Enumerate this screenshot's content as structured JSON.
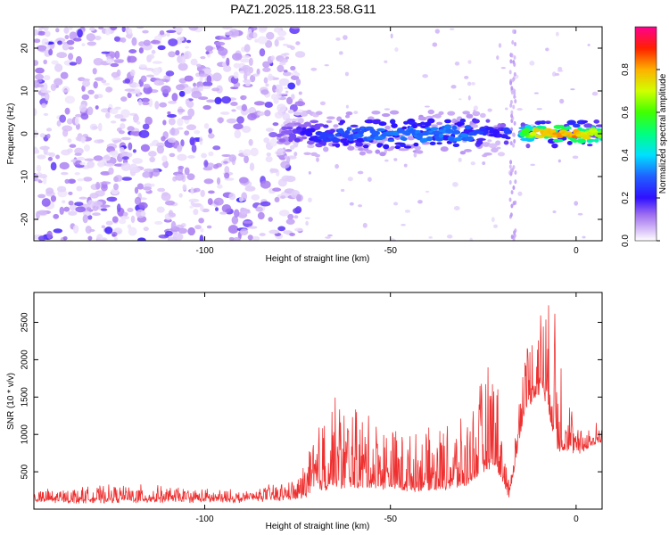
{
  "figure": {
    "title": "PAZ1.2025.118.23.58.G11"
  },
  "colors": {
    "snr_line": "#ee3030",
    "frame": "#000000"
  },
  "chart_data": [
    {
      "type": "heatmap",
      "xlabel": "Height of straight line (km)",
      "ylabel": "Frequency (Hz)",
      "xlim": [
        -146,
        7
      ],
      "ylim": [
        -25,
        25
      ],
      "xticks": [
        -100,
        -50,
        0
      ],
      "yticks": [
        -20,
        -10,
        0,
        10,
        20
      ],
      "colorbar": {
        "label": "Normalized spectral amplitude",
        "range": [
          0,
          1
        ],
        "ticks": [
          0.0,
          0.2,
          0.4,
          0.6,
          0.8
        ],
        "colormap": "rainbow",
        "low_color": "#ffffff",
        "high_color": "#ff0090"
      },
      "description_values": {
        "noise_region_x": [
          -146,
          -80
        ],
        "noise_amplitude_max": 0.1,
        "signal_band_center_hz": 0,
        "signal_band_halfwidth_hz": 4,
        "signal_amplitude_by_height": [
          {
            "x": -78,
            "amp": 0.15
          },
          {
            "x": -66,
            "amp": 0.3
          },
          {
            "x": -50,
            "amp": 0.35
          },
          {
            "x": -30,
            "amp": 0.35
          },
          {
            "x": -20,
            "amp": 0.2
          },
          {
            "x": -10,
            "amp": 0.85
          },
          {
            "x": 0,
            "amp": 0.9
          },
          {
            "x": 7,
            "amp": 0.7
          }
        ]
      }
    },
    {
      "type": "line",
      "xlabel": "Height of straight line (km)",
      "ylabel": "SNR (10 * v/v)",
      "xlim": [
        -146,
        7
      ],
      "ylim": [
        0,
        2900
      ],
      "xticks": [
        -100,
        -50,
        0
      ],
      "yticks": [
        500,
        1000,
        1500,
        2000,
        2500
      ],
      "series_envelope": [
        {
          "x": -146,
          "base": 100,
          "peak": 250
        },
        {
          "x": -120,
          "base": 110,
          "peak": 320
        },
        {
          "x": -90,
          "base": 110,
          "peak": 240
        },
        {
          "x": -75,
          "base": 150,
          "peak": 400
        },
        {
          "x": -66,
          "base": 300,
          "peak": 1550
        },
        {
          "x": -55,
          "base": 300,
          "peak": 1250
        },
        {
          "x": -45,
          "base": 250,
          "peak": 1000
        },
        {
          "x": -30,
          "base": 300,
          "peak": 1200
        },
        {
          "x": -25,
          "base": 500,
          "peak": 1800
        },
        {
          "x": -22,
          "base": 600,
          "peak": 2150
        },
        {
          "x": -18,
          "base": 150,
          "peak": 300
        },
        {
          "x": -14,
          "base": 1300,
          "peak": 2200
        },
        {
          "x": -9,
          "base": 1600,
          "peak": 2850
        },
        {
          "x": -5,
          "base": 800,
          "peak": 2650
        },
        {
          "x": 0,
          "base": 750,
          "peak": 1050
        },
        {
          "x": 7,
          "base": 900,
          "peak": 1200
        }
      ]
    }
  ]
}
